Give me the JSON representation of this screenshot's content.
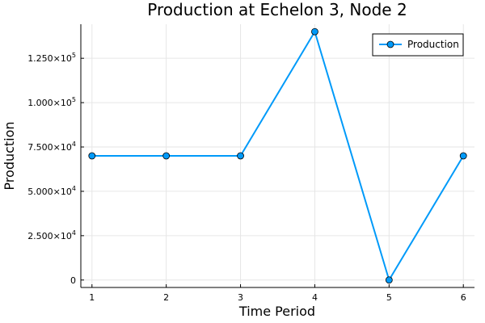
{
  "chart_data": {
    "type": "line",
    "title": "Production at Echelon 3, Node 2",
    "xlabel": "Time Period",
    "ylabel": "Production",
    "x": [
      1,
      2,
      3,
      4,
      5,
      6
    ],
    "series": [
      {
        "name": "Production",
        "values": [
          70000,
          70000,
          70000,
          140000,
          0,
          70000
        ]
      }
    ],
    "xlim": [
      0.85,
      6.15
    ],
    "ylim": [
      -4200,
      144200
    ],
    "xticks": [
      {
        "value": 1,
        "label": "1"
      },
      {
        "value": 2,
        "label": "2"
      },
      {
        "value": 3,
        "label": "3"
      },
      {
        "value": 4,
        "label": "4"
      },
      {
        "value": 5,
        "label": "5"
      },
      {
        "value": 6,
        "label": "6"
      }
    ],
    "yticks": [
      {
        "value": 0,
        "mant": "0",
        "exp": ""
      },
      {
        "value": 25000,
        "mant": "2.500×10",
        "exp": "4"
      },
      {
        "value": 50000,
        "mant": "5.000×10",
        "exp": "4"
      },
      {
        "value": 75000,
        "mant": "7.500×10",
        "exp": "4"
      },
      {
        "value": 100000,
        "mant": "1.000×10",
        "exp": "5"
      },
      {
        "value": 125000,
        "mant": "1.250×10",
        "exp": "5"
      }
    ],
    "grid": true,
    "legend_position": "top-right",
    "line_color": "#009af9"
  }
}
